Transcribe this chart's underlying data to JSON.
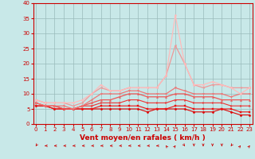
{
  "x": [
    0,
    1,
    2,
    3,
    4,
    5,
    6,
    7,
    8,
    9,
    10,
    11,
    12,
    13,
    14,
    15,
    16,
    17,
    18,
    19,
    20,
    21,
    22,
    23
  ],
  "xtick_labels": [
    "0",
    "1",
    "2",
    "3",
    "4",
    "5",
    "6",
    "7",
    "8",
    "9",
    "10",
    "11",
    "12",
    "13",
    "14",
    "15",
    "16",
    "17",
    "18",
    "19",
    "20",
    "21",
    "22",
    "23"
  ],
  "series": [
    {
      "color": "#dd0000",
      "marker": "D",
      "markersize": 1.5,
      "linewidth": 0.8,
      "values": [
        6,
        6,
        5,
        5,
        5,
        5,
        5,
        5,
        5,
        5,
        5,
        5,
        4,
        5,
        5,
        5,
        5,
        4,
        4,
        4,
        5,
        4,
        3,
        3
      ]
    },
    {
      "color": "#ee1111",
      "marker": "s",
      "markersize": 1.5,
      "linewidth": 0.8,
      "values": [
        6,
        6,
        5,
        5,
        5,
        5,
        5,
        6,
        6,
        6,
        6,
        6,
        5,
        5,
        5,
        6,
        6,
        5,
        5,
        5,
        5,
        5,
        4,
        4
      ]
    },
    {
      "color": "#ee3333",
      "marker": ">",
      "markersize": 1.5,
      "linewidth": 0.8,
      "values": [
        7,
        6,
        6,
        5,
        5,
        6,
        6,
        7,
        7,
        7,
        8,
        8,
        7,
        7,
        7,
        8,
        8,
        7,
        7,
        7,
        7,
        6,
        6,
        6
      ]
    },
    {
      "color": "#ee5555",
      "marker": "^",
      "markersize": 1.5,
      "linewidth": 0.9,
      "values": [
        7,
        6,
        6,
        5,
        5,
        6,
        7,
        8,
        8,
        9,
        10,
        10,
        9,
        9,
        9,
        10,
        10,
        9,
        9,
        9,
        8,
        8,
        8,
        8
      ]
    },
    {
      "color": "#ee7777",
      "marker": "v",
      "markersize": 1.5,
      "linewidth": 0.9,
      "values": [
        7,
        6,
        6,
        6,
        5,
        6,
        8,
        10,
        10,
        10,
        11,
        11,
        10,
        10,
        10,
        12,
        11,
        10,
        10,
        10,
        10,
        9,
        10,
        10
      ]
    },
    {
      "color": "#ee9999",
      "marker": "<",
      "markersize": 1.5,
      "linewidth": 0.9,
      "values": [
        8,
        7,
        7,
        7,
        6,
        7,
        10,
        12,
        11,
        11,
        12,
        12,
        12,
        12,
        16,
        26,
        20,
        13,
        12,
        13,
        13,
        12,
        12,
        12
      ]
    },
    {
      "color": "#ffbbbb",
      "marker": "o",
      "markersize": 1.5,
      "linewidth": 0.9,
      "values": [
        8,
        7,
        7,
        7,
        7,
        8,
        10,
        13,
        11,
        11,
        12,
        12,
        12,
        12,
        16,
        36,
        20,
        13,
        13,
        14,
        13,
        12,
        10,
        12
      ]
    }
  ],
  "ylim": [
    0,
    40
  ],
  "yticks": [
    0,
    5,
    10,
    15,
    20,
    25,
    30,
    35,
    40
  ],
  "xlim": [
    -0.3,
    23.3
  ],
  "xlabel": "Vent moyen/en rafales ( km/h )",
  "xlabel_color": "#cc0000",
  "xlabel_fontsize": 6.5,
  "bg_color": "#c8e8e8",
  "grid_color": "#99bbbb",
  "axis_color": "#cc0000",
  "tick_color": "#cc0000",
  "tick_fontsize": 5.0
}
